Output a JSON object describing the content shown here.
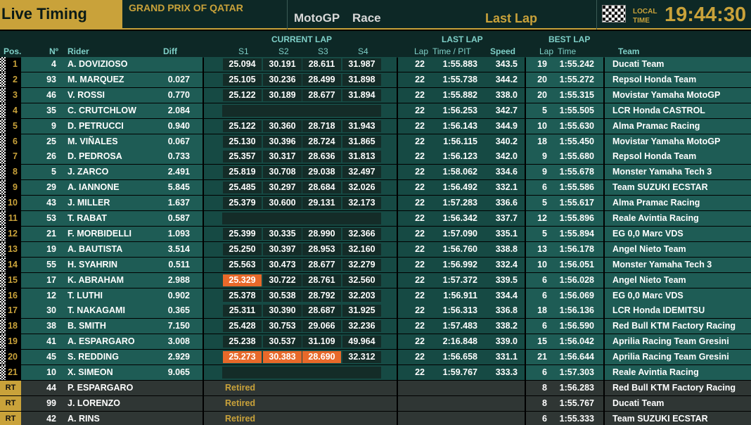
{
  "header": {
    "live_timing": "Live Timing",
    "event": "GRAND PRIX OF QATAR",
    "class": "MotoGP",
    "session": "Race",
    "lap": "Last Lap",
    "local": "LOCAL",
    "time_word": "TIME",
    "clock": "19:44:30"
  },
  "columns": {
    "pos": "Pos.",
    "num": "Nº",
    "rider": "Rider",
    "diff": "Diff",
    "current_lap": "CURRENT LAP",
    "s1": "S1",
    "s2": "S2",
    "s3": "S3",
    "s4": "S4",
    "last_lap": "LAST LAP",
    "lap": "Lap",
    "time_pit": "Time / PIT",
    "speed": "Speed",
    "best_lap": "BEST LAP",
    "blap": "Lap",
    "btime": "Time",
    "team": "Team"
  },
  "rows": [
    {
      "pos": "1",
      "num": "4",
      "rider": "A. DOVIZIOSO",
      "diff": "",
      "s": [
        "25.094",
        "30.191",
        "28.611",
        "31.987"
      ],
      "hl": [],
      "lap": "22",
      "time": "1:55.883",
      "speed": "343.5",
      "blap": "19",
      "btime": "1:55.242",
      "team": "Ducati Team"
    },
    {
      "pos": "2",
      "num": "93",
      "rider": "M. MARQUEZ",
      "diff": "0.027",
      "s": [
        "25.105",
        "30.236",
        "28.499",
        "31.898"
      ],
      "hl": [],
      "lap": "22",
      "time": "1:55.738",
      "speed": "344.2",
      "blap": "20",
      "btime": "1:55.272",
      "team": "Repsol Honda Team"
    },
    {
      "pos": "3",
      "num": "46",
      "rider": "V. ROSSI",
      "diff": "0.770",
      "s": [
        "25.122",
        "30.189",
        "28.677",
        "31.894"
      ],
      "hl": [],
      "lap": "22",
      "time": "1:55.882",
      "speed": "338.0",
      "blap": "20",
      "btime": "1:55.315",
      "team": "Movistar Yamaha MotoGP"
    },
    {
      "pos": "4",
      "num": "35",
      "rider": "C. CRUTCHLOW",
      "diff": "2.084",
      "s": null,
      "hl": [],
      "lap": "22",
      "time": "1:56.253",
      "speed": "342.7",
      "blap": "5",
      "btime": "1:55.505",
      "team": "LCR Honda CASTROL"
    },
    {
      "pos": "5",
      "num": "9",
      "rider": "D. PETRUCCI",
      "diff": "0.940",
      "s": [
        "25.122",
        "30.360",
        "28.718",
        "31.943"
      ],
      "hl": [],
      "lap": "22",
      "time": "1:56.143",
      "speed": "344.9",
      "blap": "10",
      "btime": "1:55.630",
      "team": "Alma Pramac Racing"
    },
    {
      "pos": "6",
      "num": "25",
      "rider": "M. VIÑALES",
      "diff": "0.067",
      "s": [
        "25.130",
        "30.396",
        "28.724",
        "31.865"
      ],
      "hl": [],
      "lap": "22",
      "time": "1:56.115",
      "speed": "340.2",
      "blap": "18",
      "btime": "1:55.450",
      "team": "Movistar Yamaha MotoGP"
    },
    {
      "pos": "7",
      "num": "26",
      "rider": "D. PEDROSA",
      "diff": "0.733",
      "s": [
        "25.357",
        "30.317",
        "28.636",
        "31.813"
      ],
      "hl": [],
      "lap": "22",
      "time": "1:56.123",
      "speed": "342.0",
      "blap": "9",
      "btime": "1:55.680",
      "team": "Repsol Honda Team"
    },
    {
      "pos": "8",
      "num": "5",
      "rider": "J. ZARCO",
      "diff": "2.491",
      "s": [
        "25.819",
        "30.708",
        "29.038",
        "32.497"
      ],
      "hl": [],
      "lap": "22",
      "time": "1:58.062",
      "speed": "334.6",
      "blap": "9",
      "btime": "1:55.678",
      "team": "Monster Yamaha Tech 3"
    },
    {
      "pos": "9",
      "num": "29",
      "rider": "A. IANNONE",
      "diff": "5.845",
      "s": [
        "25.485",
        "30.297",
        "28.684",
        "32.026"
      ],
      "hl": [],
      "lap": "22",
      "time": "1:56.492",
      "speed": "332.1",
      "blap": "6",
      "btime": "1:55.586",
      "team": "Team SUZUKI ECSTAR"
    },
    {
      "pos": "10",
      "num": "43",
      "rider": "J. MILLER",
      "diff": "1.637",
      "s": [
        "25.379",
        "30.600",
        "29.131",
        "32.173"
      ],
      "hl": [],
      "lap": "22",
      "time": "1:57.283",
      "speed": "336.6",
      "blap": "5",
      "btime": "1:55.617",
      "team": "Alma Pramac Racing"
    },
    {
      "pos": "11",
      "num": "53",
      "rider": "T. RABAT",
      "diff": "0.587",
      "s": null,
      "hl": [],
      "lap": "22",
      "time": "1:56.342",
      "speed": "337.7",
      "blap": "12",
      "btime": "1:55.896",
      "team": "Reale Avintia Racing"
    },
    {
      "pos": "12",
      "num": "21",
      "rider": "F. MORBIDELLI",
      "diff": "1.093",
      "s": [
        "25.399",
        "30.335",
        "28.990",
        "32.366"
      ],
      "hl": [],
      "lap": "22",
      "time": "1:57.090",
      "speed": "335.1",
      "blap": "5",
      "btime": "1:55.894",
      "team": "EG 0,0 Marc VDS"
    },
    {
      "pos": "13",
      "num": "19",
      "rider": "A. BAUTISTA",
      "diff": "3.514",
      "s": [
        "25.250",
        "30.397",
        "28.953",
        "32.160"
      ],
      "hl": [],
      "lap": "22",
      "time": "1:56.760",
      "speed": "338.8",
      "blap": "13",
      "btime": "1:56.178",
      "team": "Angel Nieto Team"
    },
    {
      "pos": "14",
      "num": "55",
      "rider": "H. SYAHRIN",
      "diff": "0.511",
      "s": [
        "25.563",
        "30.473",
        "28.677",
        "32.279"
      ],
      "hl": [],
      "lap": "22",
      "time": "1:56.992",
      "speed": "332.4",
      "blap": "10",
      "btime": "1:56.051",
      "team": "Monster Yamaha Tech 3"
    },
    {
      "pos": "15",
      "num": "17",
      "rider": "K. ABRAHAM",
      "diff": "2.988",
      "s": [
        "25.329",
        "30.722",
        "28.761",
        "32.560"
      ],
      "hl": [
        0
      ],
      "lap": "22",
      "time": "1:57.372",
      "speed": "339.5",
      "blap": "6",
      "btime": "1:56.028",
      "team": "Angel Nieto Team"
    },
    {
      "pos": "16",
      "num": "12",
      "rider": "T. LUTHI",
      "diff": "0.902",
      "s": [
        "25.378",
        "30.538",
        "28.792",
        "32.203"
      ],
      "hl": [],
      "lap": "22",
      "time": "1:56.911",
      "speed": "334.4",
      "blap": "6",
      "btime": "1:56.069",
      "team": "EG 0,0 Marc VDS"
    },
    {
      "pos": "17",
      "num": "30",
      "rider": "T. NAKAGAMI",
      "diff": "0.365",
      "s": [
        "25.311",
        "30.390",
        "28.687",
        "31.925"
      ],
      "hl": [],
      "lap": "22",
      "time": "1:56.313",
      "speed": "336.8",
      "blap": "18",
      "btime": "1:56.136",
      "team": "LCR Honda IDEMITSU"
    },
    {
      "pos": "18",
      "num": "38",
      "rider": "B. SMITH",
      "diff": "7.150",
      "s": [
        "25.428",
        "30.753",
        "29.066",
        "32.236"
      ],
      "hl": [],
      "lap": "22",
      "time": "1:57.483",
      "speed": "338.2",
      "blap": "6",
      "btime": "1:56.590",
      "team": "Red Bull KTM Factory Racing"
    },
    {
      "pos": "19",
      "num": "41",
      "rider": "A. ESPARGARO",
      "diff": "3.008",
      "s": [
        "25.238",
        "30.537",
        "31.109",
        "49.964"
      ],
      "hl": [],
      "lap": "22",
      "time": "2:16.848",
      "speed": "339.0",
      "blap": "15",
      "btime": "1:56.042",
      "team": "Aprilia Racing Team Gresini"
    },
    {
      "pos": "20",
      "num": "45",
      "rider": "S. REDDING",
      "diff": "2.929",
      "s": [
        "25.273",
        "30.383",
        "28.690",
        "32.312"
      ],
      "hl": [
        0,
        1,
        2
      ],
      "lap": "22",
      "time": "1:56.658",
      "speed": "331.1",
      "blap": "21",
      "btime": "1:56.644",
      "team": "Aprilia Racing Team Gresini"
    },
    {
      "pos": "21",
      "num": "10",
      "rider": "X. SIMEON",
      "diff": "9.065",
      "s": null,
      "hl": [],
      "lap": "22",
      "time": "1:59.767",
      "speed": "333.3",
      "blap": "6",
      "btime": "1:57.303",
      "team": "Reale Avintia Racing"
    },
    {
      "pos": "RT",
      "num": "44",
      "rider": "P. ESPARGARO",
      "retired": "Retired",
      "blap": "8",
      "btime": "1:56.283",
      "team": "Red Bull KTM Factory Racing"
    },
    {
      "pos": "RT",
      "num": "99",
      "rider": "J. LORENZO",
      "retired": "Retired",
      "blap": "8",
      "btime": "1:55.767",
      "team": "Ducati Team"
    },
    {
      "pos": "RT",
      "num": "42",
      "rider": "A. RINS",
      "retired": "Retired",
      "blap": "6",
      "btime": "1:55.333",
      "team": "Team SUZUKI ECSTAR"
    }
  ]
}
